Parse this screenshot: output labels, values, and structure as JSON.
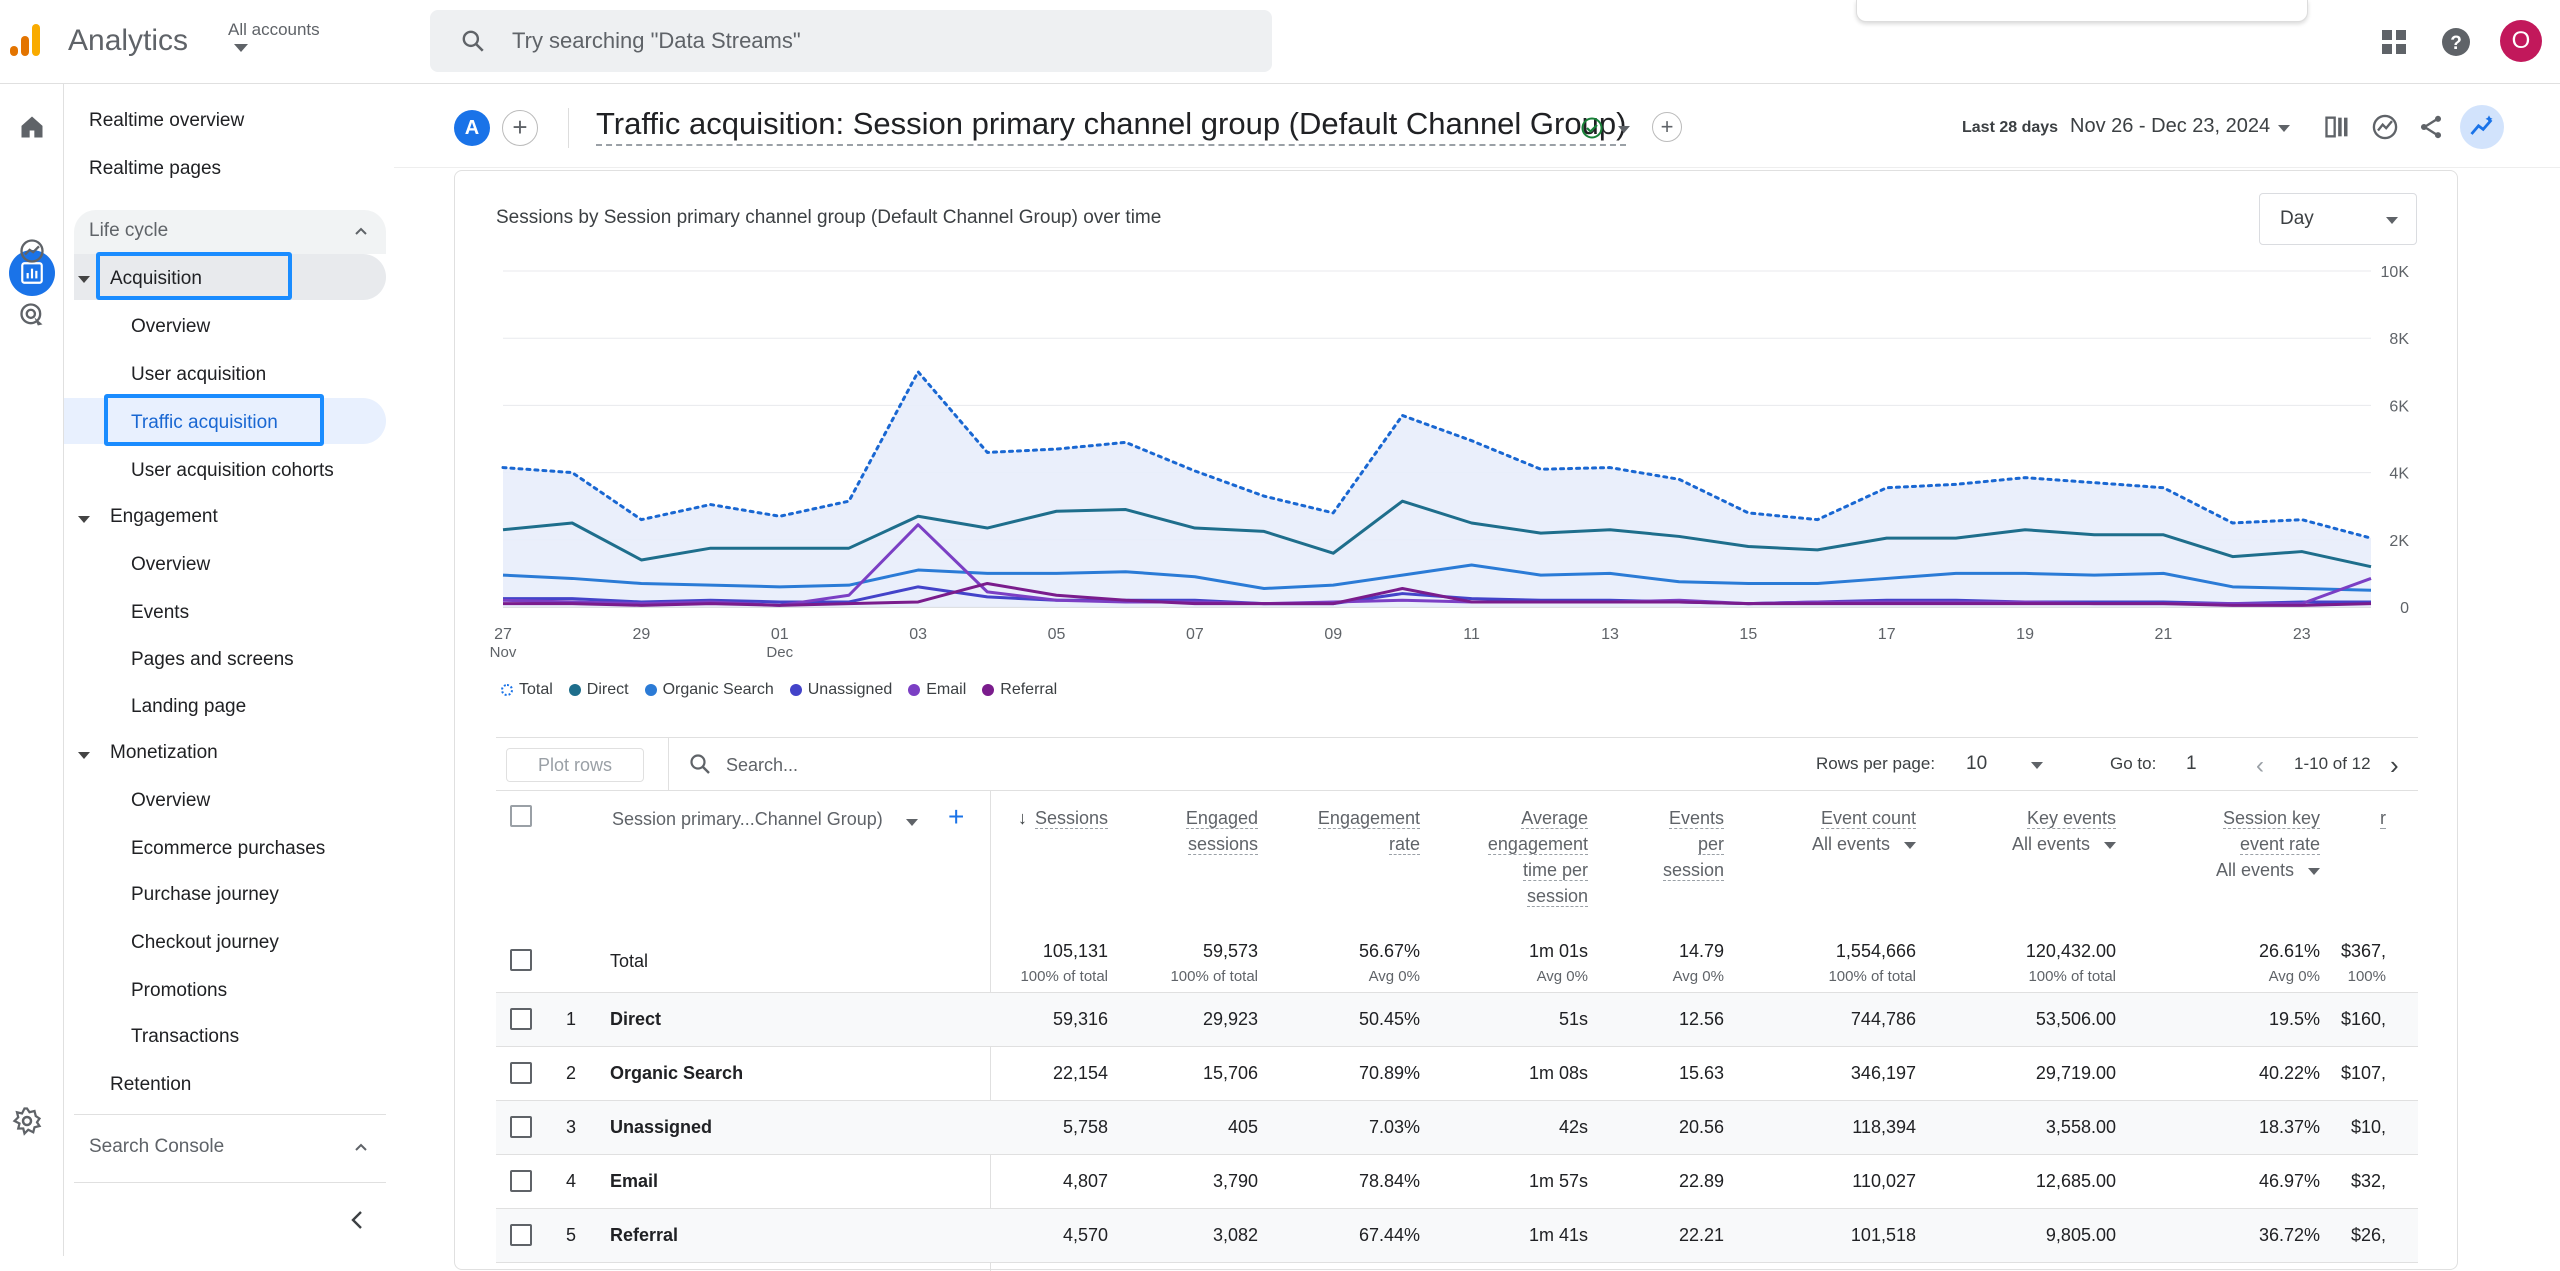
{
  "app": {
    "name": "Analytics",
    "account_label": "All accounts"
  },
  "search": {
    "placeholder": "Try searching \"Data Streams\""
  },
  "user": {
    "avatar_letter": "O"
  },
  "sidebar": {
    "items_top": [
      "Realtime overview",
      "Realtime pages"
    ],
    "lifecycle_label": "Life cycle",
    "acquisition": {
      "label": "Acquisition",
      "children": [
        "Overview",
        "User acquisition",
        "Traffic acquisition",
        "User acquisition cohorts"
      ]
    },
    "engagement": {
      "label": "Engagement",
      "children": [
        "Overview",
        "Events",
        "Pages and screens",
        "Landing page"
      ]
    },
    "monetization": {
      "label": "Monetization",
      "children": [
        "Overview",
        "Ecommerce purchases",
        "Purchase journey",
        "Checkout journey",
        "Promotions",
        "Transactions"
      ]
    },
    "retention_label": "Retention",
    "search_console_label": "Search Console"
  },
  "header": {
    "compare_letter": "A",
    "title": "Traffic acquisition: Session primary channel group (Default Channel Group)",
    "date_label": "Last 28 days",
    "date_range": "Nov 26 - Dec 23, 2024"
  },
  "card": {
    "chart_title": "Sessions by Session primary channel group (Default Channel Group) over time",
    "granularity": "Day"
  },
  "colors": {
    "total": "#1a73e8",
    "direct": "#1e6e8c",
    "organic": "#2b7bd6",
    "unassigned": "#4343c9",
    "email": "#7b3fc4",
    "referral": "#7a1c8c"
  },
  "chart_data": {
    "type": "line",
    "x": [
      "27",
      "28",
      "29",
      "30",
      "01",
      "02",
      "03",
      "04",
      "05",
      "06",
      "07",
      "08",
      "09",
      "10",
      "11",
      "12",
      "13",
      "14",
      "15",
      "16",
      "17",
      "18",
      "19",
      "20",
      "21",
      "22",
      "23",
      "24"
    ],
    "x_ticks": [
      {
        "label": "27",
        "sub": "Nov",
        "index": 0
      },
      {
        "label": "29",
        "sub": "",
        "index": 2
      },
      {
        "label": "01",
        "sub": "Dec",
        "index": 4
      },
      {
        "label": "03",
        "sub": "",
        "index": 6
      },
      {
        "label": "05",
        "sub": "",
        "index": 8
      },
      {
        "label": "07",
        "sub": "",
        "index": 10
      },
      {
        "label": "09",
        "sub": "",
        "index": 12
      },
      {
        "label": "11",
        "sub": "",
        "index": 14
      },
      {
        "label": "13",
        "sub": "",
        "index": 16
      },
      {
        "label": "15",
        "sub": "",
        "index": 18
      },
      {
        "label": "17",
        "sub": "",
        "index": 20
      },
      {
        "label": "19",
        "sub": "",
        "index": 22
      },
      {
        "label": "21",
        "sub": "",
        "index": 24
      },
      {
        "label": "23",
        "sub": "",
        "index": 26
      }
    ],
    "y_ticks": [
      "0",
      "2K",
      "4K",
      "6K",
      "8K",
      "10K"
    ],
    "ylim": [
      0,
      10000
    ],
    "series": [
      {
        "name": "Total",
        "values": [
          4150,
          4000,
          2600,
          3050,
          2700,
          3150,
          7000,
          4600,
          4700,
          4900,
          4050,
          3300,
          2800,
          5700,
          4950,
          4100,
          4150,
          3800,
          2800,
          2600,
          3550,
          3650,
          3850,
          3700,
          3550,
          2500,
          2600,
          2050
        ]
      },
      {
        "name": "Direct",
        "values": [
          2300,
          2500,
          1400,
          1750,
          1750,
          1750,
          2700,
          2350,
          2850,
          2900,
          2350,
          2250,
          1600,
          3150,
          2500,
          2200,
          2300,
          2100,
          1800,
          1700,
          2050,
          2050,
          2300,
          2150,
          2150,
          1500,
          1650,
          1200
        ]
      },
      {
        "name": "Organic Search",
        "values": [
          950,
          850,
          700,
          650,
          600,
          650,
          1100,
          1000,
          1000,
          1050,
          900,
          550,
          650,
          950,
          1250,
          950,
          1000,
          750,
          700,
          700,
          850,
          1000,
          1000,
          950,
          1000,
          600,
          550,
          500
        ]
      },
      {
        "name": "Unassigned",
        "values": [
          250,
          250,
          150,
          200,
          150,
          150,
          600,
          300,
          200,
          200,
          200,
          100,
          100,
          400,
          250,
          200,
          200,
          150,
          100,
          150,
          200,
          200,
          150,
          150,
          150,
          100,
          150,
          150
        ]
      },
      {
        "name": "Email",
        "values": [
          200,
          150,
          100,
          150,
          50,
          350,
          2450,
          450,
          200,
          150,
          150,
          100,
          150,
          200,
          150,
          150,
          150,
          200,
          100,
          150,
          150,
          150,
          150,
          100,
          100,
          100,
          100,
          850
        ]
      },
      {
        "name": "Referral",
        "values": [
          100,
          100,
          50,
          100,
          50,
          100,
          150,
          700,
          350,
          200,
          100,
          100,
          100,
          550,
          150,
          150,
          150,
          150,
          100,
          100,
          100,
          100,
          100,
          100,
          100,
          50,
          50,
          100
        ]
      }
    ]
  },
  "table": {
    "plot_rows_label": "Plot rows",
    "search_placeholder": "Search...",
    "rows_per_page_label": "Rows per page:",
    "rows_per_page": "10",
    "goto_label": "Go to:",
    "goto_value": "1",
    "page_range": "1-10 of 12",
    "dimension_header": "Session primary...Channel Group)",
    "columns": [
      {
        "label_lines": [
          "Sessions"
        ],
        "sub": ""
      },
      {
        "label_lines": [
          "Engaged",
          "sessions"
        ],
        "sub": ""
      },
      {
        "label_lines": [
          "Engagement",
          "rate"
        ],
        "sub": ""
      },
      {
        "label_lines": [
          "Average",
          "engagement",
          "time per",
          "session"
        ],
        "sub": ""
      },
      {
        "label_lines": [
          "Events",
          "per",
          "session"
        ],
        "sub": ""
      },
      {
        "label_lines": [
          "Event count"
        ],
        "sub": "All events"
      },
      {
        "label_lines": [
          "Key events"
        ],
        "sub": "All events"
      },
      {
        "label_lines": [
          "Session key",
          "event rate"
        ],
        "sub": "All events"
      },
      {
        "label_lines": [
          "r"
        ],
        "sub": ""
      }
    ],
    "total": {
      "label": "Total",
      "values": [
        "105,131",
        "59,573",
        "56.67%",
        "1m 01s",
        "14.79",
        "1,554,666",
        "120,432.00",
        "26.61%",
        "$367,"
      ],
      "subs": [
        "100% of total",
        "100% of total",
        "Avg 0%",
        "Avg 0%",
        "Avg 0%",
        "100% of total",
        "100% of total",
        "Avg 0%",
        "100%"
      ]
    },
    "rows": [
      {
        "idx": "1",
        "name": "Direct",
        "values": [
          "59,316",
          "29,923",
          "50.45%",
          "51s",
          "12.56",
          "744,786",
          "53,506.00",
          "19.5%",
          "$160,"
        ]
      },
      {
        "idx": "2",
        "name": "Organic Search",
        "values": [
          "22,154",
          "15,706",
          "70.89%",
          "1m 08s",
          "15.63",
          "346,197",
          "29,719.00",
          "40.22%",
          "$107,"
        ]
      },
      {
        "idx": "3",
        "name": "Unassigned",
        "values": [
          "5,758",
          "405",
          "7.03%",
          "42s",
          "20.56",
          "118,394",
          "3,558.00",
          "18.37%",
          "$10,"
        ]
      },
      {
        "idx": "4",
        "name": "Email",
        "values": [
          "4,807",
          "3,790",
          "78.84%",
          "1m 57s",
          "22.89",
          "110,027",
          "12,685.00",
          "46.97%",
          "$32,"
        ]
      },
      {
        "idx": "5",
        "name": "Referral",
        "values": [
          "4,570",
          "3,082",
          "67.44%",
          "1m 41s",
          "22.21",
          "101,518",
          "9,805.00",
          "36.72%",
          "$26,"
        ]
      }
    ]
  }
}
